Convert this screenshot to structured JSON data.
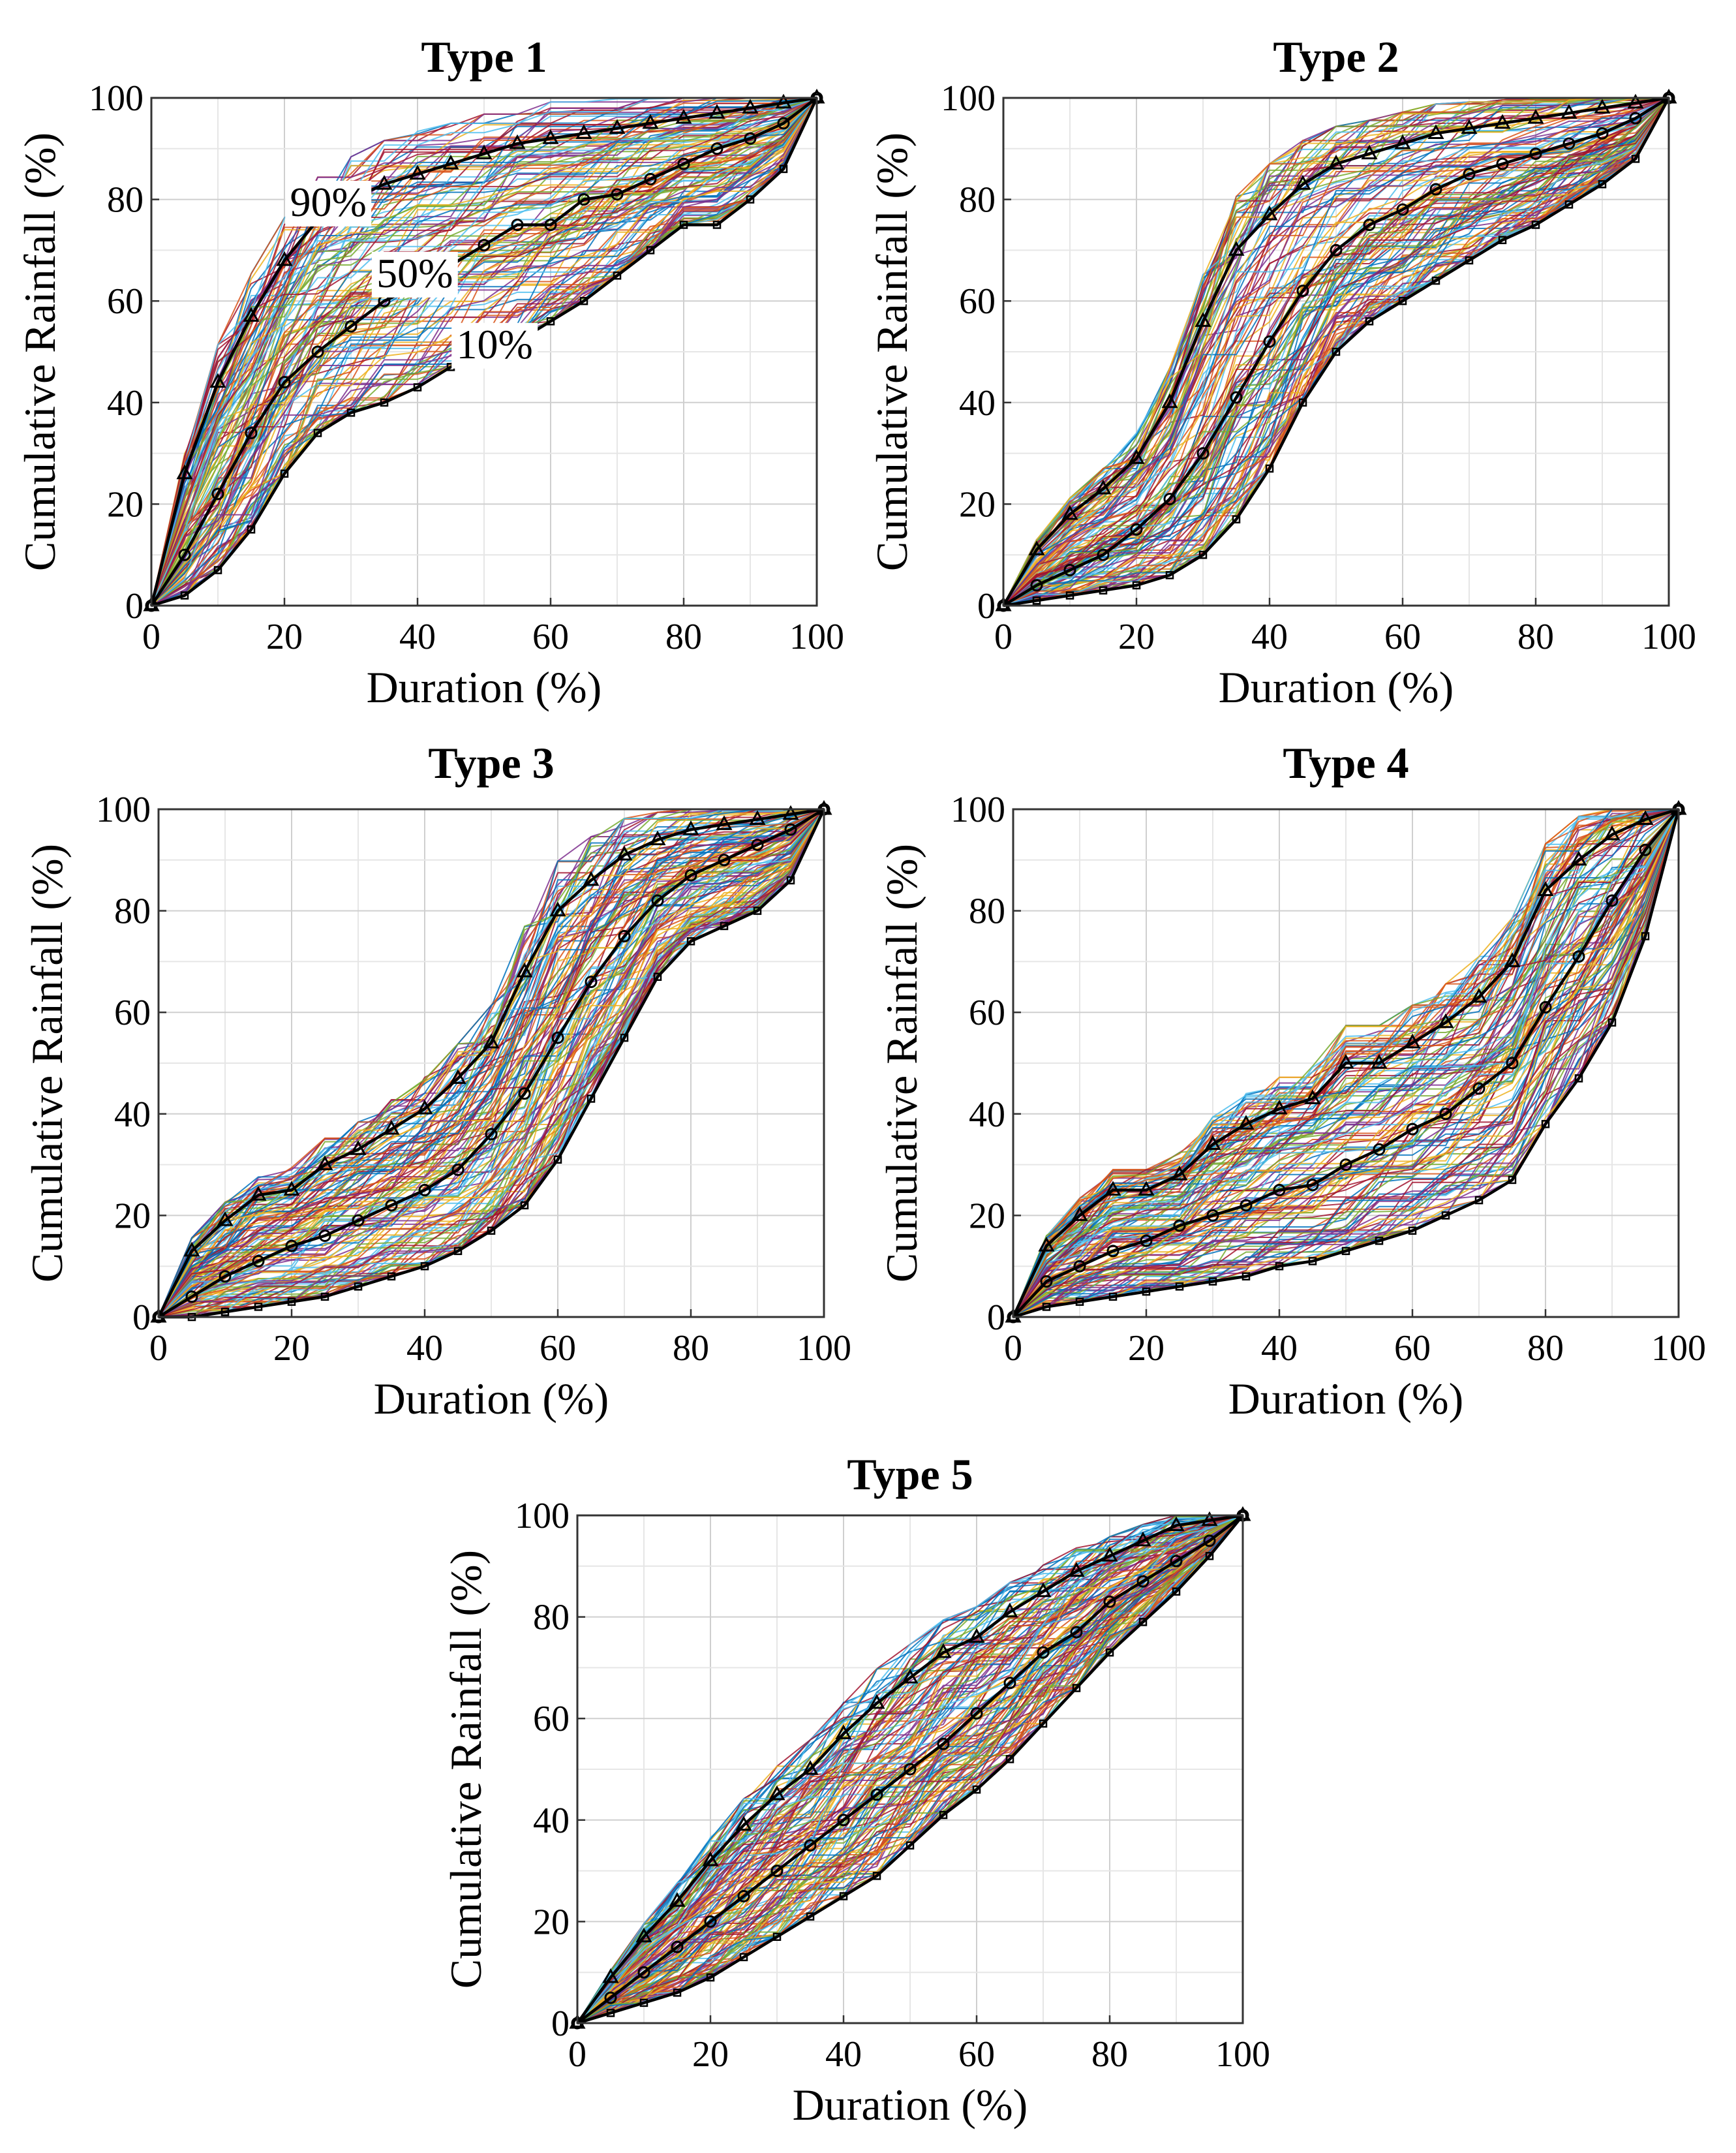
{
  "figure": {
    "x_label": "Duration (%)",
    "y_label": "Cumulative Rainfall (%)"
  },
  "chart_data": [
    {
      "type": "line",
      "title": "Type 1",
      "xlabel": "Duration (%)",
      "ylabel": "Cumulative Rainfall (%)",
      "xlim": [
        0,
        100
      ],
      "ylim": [
        0,
        100
      ],
      "xticks": [
        0,
        20,
        40,
        60,
        80,
        100
      ],
      "yticks": [
        0,
        20,
        40,
        60,
        80,
        100
      ],
      "grid": true,
      "ensemble_note": "hundreds of individual multicolored event curves between the 10% and 90% bounds",
      "series": [
        {
          "name": "90%",
          "marker": "triangle",
          "x": [
            0,
            5,
            10,
            15,
            20,
            25,
            30,
            35,
            40,
            45,
            50,
            55,
            60,
            65,
            70,
            75,
            80,
            85,
            90,
            95,
            100
          ],
          "y": [
            0,
            26,
            44,
            57,
            68,
            76,
            80,
            83,
            85,
            87,
            89,
            91,
            92,
            93,
            94,
            95,
            96,
            97,
            98,
            99,
            100
          ]
        },
        {
          "name": "50%",
          "marker": "circle",
          "x": [
            0,
            5,
            10,
            15,
            20,
            25,
            30,
            35,
            40,
            45,
            50,
            55,
            60,
            65,
            70,
            75,
            80,
            85,
            90,
            95,
            100
          ],
          "y": [
            0,
            10,
            22,
            34,
            44,
            50,
            55,
            60,
            63,
            67,
            71,
            75,
            75,
            80,
            81,
            84,
            87,
            90,
            92,
            95,
            100
          ]
        },
        {
          "name": "10%",
          "marker": "square",
          "x": [
            0,
            5,
            10,
            15,
            20,
            25,
            30,
            35,
            40,
            45,
            50,
            55,
            60,
            65,
            70,
            75,
            80,
            85,
            90,
            95,
            100
          ],
          "y": [
            0,
            2,
            7,
            15,
            26,
            34,
            38,
            40,
            43,
            47,
            50,
            52,
            56,
            60,
            65,
            70,
            75,
            75,
            80,
            86,
            100
          ]
        }
      ],
      "annotations": [
        {
          "text": "90%",
          "x": 26,
          "y": 77
        },
        {
          "text": "50%",
          "x": 39,
          "y": 63
        },
        {
          "text": "10%",
          "x": 51,
          "y": 49
        }
      ]
    },
    {
      "type": "line",
      "title": "Type 2",
      "xlabel": "Duration (%)",
      "ylabel": "Cumulative Rainfall (%)",
      "xlim": [
        0,
        100
      ],
      "ylim": [
        0,
        100
      ],
      "xticks": [
        0,
        20,
        40,
        60,
        80,
        100
      ],
      "yticks": [
        0,
        20,
        40,
        60,
        80,
        100
      ],
      "grid": true,
      "series": [
        {
          "name": "90%",
          "marker": "triangle",
          "x": [
            0,
            5,
            10,
            15,
            20,
            25,
            30,
            35,
            40,
            45,
            50,
            55,
            60,
            65,
            70,
            75,
            80,
            85,
            90,
            95,
            100
          ],
          "y": [
            0,
            11,
            18,
            23,
            29,
            40,
            56,
            70,
            77,
            83,
            87,
            89,
            91,
            93,
            94,
            95,
            96,
            97,
            98,
            99,
            100
          ]
        },
        {
          "name": "50%",
          "marker": "circle",
          "x": [
            0,
            5,
            10,
            15,
            20,
            25,
            30,
            35,
            40,
            45,
            50,
            55,
            60,
            65,
            70,
            75,
            80,
            85,
            90,
            95,
            100
          ],
          "y": [
            0,
            4,
            7,
            10,
            15,
            21,
            30,
            41,
            52,
            62,
            70,
            75,
            78,
            82,
            85,
            87,
            89,
            91,
            93,
            96,
            100
          ]
        },
        {
          "name": "10%",
          "marker": "square",
          "x": [
            0,
            5,
            10,
            15,
            20,
            25,
            30,
            35,
            40,
            45,
            50,
            55,
            60,
            65,
            70,
            75,
            80,
            85,
            90,
            95,
            100
          ],
          "y": [
            0,
            1,
            2,
            3,
            4,
            6,
            10,
            17,
            27,
            40,
            50,
            56,
            60,
            64,
            68,
            72,
            75,
            79,
            83,
            88,
            100
          ]
        }
      ]
    },
    {
      "type": "line",
      "title": "Type 3",
      "xlabel": "Duration (%)",
      "ylabel": "Cumulative Rainfall (%)",
      "xlim": [
        0,
        100
      ],
      "ylim": [
        0,
        100
      ],
      "xticks": [
        0,
        20,
        40,
        60,
        80,
        100
      ],
      "yticks": [
        0,
        20,
        40,
        60,
        80,
        100
      ],
      "grid": true,
      "series": [
        {
          "name": "90%",
          "marker": "triangle",
          "x": [
            0,
            5,
            10,
            15,
            20,
            25,
            30,
            35,
            40,
            45,
            50,
            55,
            60,
            65,
            70,
            75,
            80,
            85,
            90,
            95,
            100
          ],
          "y": [
            0,
            13,
            19,
            24,
            25,
            30,
            33,
            37,
            41,
            47,
            54,
            68,
            80,
            86,
            91,
            94,
            96,
            97,
            98,
            99,
            100
          ]
        },
        {
          "name": "50%",
          "marker": "circle",
          "x": [
            0,
            5,
            10,
            15,
            20,
            25,
            30,
            35,
            40,
            45,
            50,
            55,
            60,
            65,
            70,
            75,
            80,
            85,
            90,
            95,
            100
          ],
          "y": [
            0,
            4,
            8,
            11,
            14,
            16,
            19,
            22,
            25,
            29,
            36,
            44,
            55,
            66,
            75,
            82,
            87,
            90,
            93,
            96,
            100
          ]
        },
        {
          "name": "10%",
          "marker": "square",
          "x": [
            0,
            5,
            10,
            15,
            20,
            25,
            30,
            35,
            40,
            45,
            50,
            55,
            60,
            65,
            70,
            75,
            80,
            85,
            90,
            95,
            100
          ],
          "y": [
            0,
            0,
            1,
            2,
            3,
            4,
            6,
            8,
            10,
            13,
            17,
            22,
            31,
            43,
            55,
            67,
            74,
            77,
            80,
            86,
            100
          ]
        }
      ]
    },
    {
      "type": "line",
      "title": "Type 4",
      "xlabel": "Duration (%)",
      "ylabel": "Cumulative Rainfall (%)",
      "xlim": [
        0,
        100
      ],
      "ylim": [
        0,
        100
      ],
      "xticks": [
        0,
        20,
        40,
        60,
        80,
        100
      ],
      "yticks": [
        0,
        20,
        40,
        60,
        80,
        100
      ],
      "grid": true,
      "series": [
        {
          "name": "90%",
          "marker": "triangle",
          "x": [
            0,
            5,
            10,
            15,
            20,
            25,
            30,
            35,
            40,
            45,
            50,
            55,
            60,
            65,
            70,
            75,
            80,
            85,
            90,
            95,
            100
          ],
          "y": [
            0,
            14,
            20,
            25,
            25,
            28,
            34,
            38,
            41,
            43,
            50,
            50,
            54,
            58,
            63,
            70,
            84,
            90,
            95,
            98,
            100
          ]
        },
        {
          "name": "50%",
          "marker": "circle",
          "x": [
            0,
            5,
            10,
            15,
            20,
            25,
            30,
            35,
            40,
            45,
            50,
            55,
            60,
            65,
            70,
            75,
            80,
            85,
            90,
            95,
            100
          ],
          "y": [
            0,
            7,
            10,
            13,
            15,
            18,
            20,
            22,
            25,
            26,
            30,
            33,
            37,
            40,
            45,
            50,
            61,
            71,
            82,
            92,
            100
          ]
        },
        {
          "name": "10%",
          "marker": "square",
          "x": [
            0,
            5,
            10,
            15,
            20,
            25,
            30,
            35,
            40,
            45,
            50,
            55,
            60,
            65,
            70,
            75,
            80,
            85,
            90,
            95,
            100
          ],
          "y": [
            0,
            2,
            3,
            4,
            5,
            6,
            7,
            8,
            10,
            11,
            13,
            15,
            17,
            20,
            23,
            27,
            38,
            47,
            58,
            75,
            100
          ]
        }
      ]
    },
    {
      "type": "line",
      "title": "Type 5",
      "xlabel": "Duration (%)",
      "ylabel": "Cumulative Rainfall (%)",
      "xlim": [
        0,
        100
      ],
      "ylim": [
        0,
        100
      ],
      "xticks": [
        0,
        20,
        40,
        60,
        80,
        100
      ],
      "yticks": [
        0,
        20,
        40,
        60,
        80,
        100
      ],
      "grid": true,
      "series": [
        {
          "name": "90%",
          "marker": "triangle",
          "x": [
            0,
            5,
            10,
            15,
            20,
            25,
            30,
            35,
            40,
            45,
            50,
            55,
            60,
            65,
            70,
            75,
            80,
            85,
            90,
            95,
            100
          ],
          "y": [
            0,
            9,
            17,
            24,
            32,
            39,
            45,
            50,
            57,
            63,
            68,
            73,
            76,
            81,
            85,
            89,
            92,
            95,
            98,
            99,
            100
          ]
        },
        {
          "name": "50%",
          "marker": "circle",
          "x": [
            0,
            5,
            10,
            15,
            20,
            25,
            30,
            35,
            40,
            45,
            50,
            55,
            60,
            65,
            70,
            75,
            80,
            85,
            90,
            95,
            100
          ],
          "y": [
            0,
            5,
            10,
            15,
            20,
            25,
            30,
            35,
            40,
            45,
            50,
            55,
            61,
            67,
            73,
            77,
            83,
            87,
            91,
            95,
            100
          ]
        },
        {
          "name": "10%",
          "marker": "square",
          "x": [
            0,
            5,
            10,
            15,
            20,
            25,
            30,
            35,
            40,
            45,
            50,
            55,
            60,
            65,
            70,
            75,
            80,
            85,
            90,
            95,
            100
          ],
          "y": [
            0,
            2,
            4,
            6,
            9,
            13,
            17,
            21,
            25,
            29,
            35,
            41,
            46,
            52,
            59,
            66,
            73,
            79,
            85,
            92,
            100
          ]
        }
      ]
    }
  ]
}
